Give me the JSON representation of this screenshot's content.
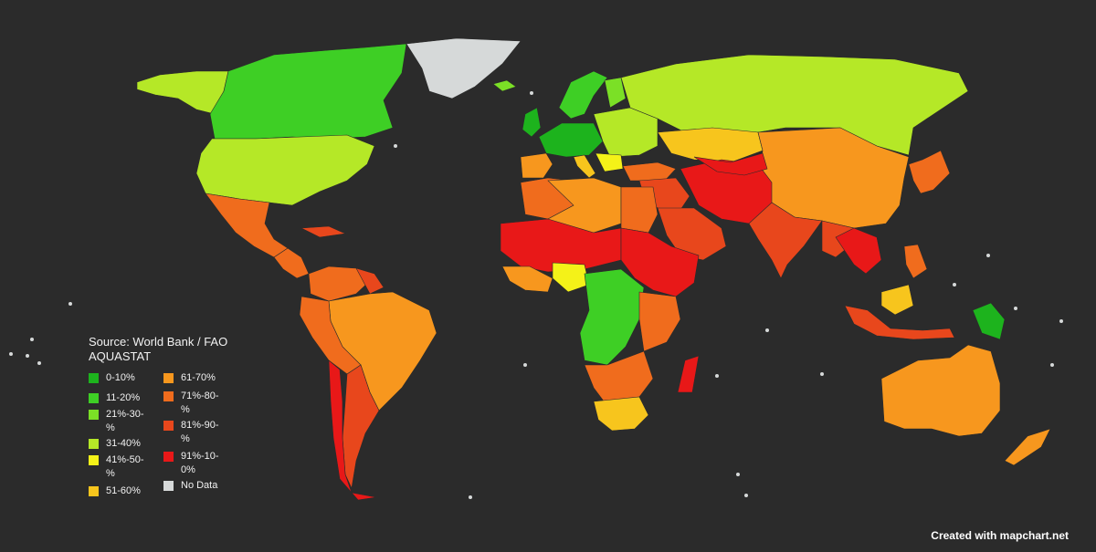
{
  "source_text": "Source: World Bank / FAO AQUASTAT",
  "credit_text": "Created with mapchart.net",
  "background_color": "#2b2b2b",
  "legend": [
    {
      "label": "0-10%",
      "color": "#1db31d"
    },
    {
      "label": "11-20%",
      "color": "#3ecf25"
    },
    {
      "label": "21%-30-%",
      "color": "#7be026"
    },
    {
      "label": "31-40%",
      "color": "#b5e827"
    },
    {
      "label": "41%-50-%",
      "color": "#f4f218"
    },
    {
      "label": "51-60%",
      "color": "#f7c51d"
    },
    {
      "label": "61-70%",
      "color": "#f7971e"
    },
    {
      "label": "71%-80-%",
      "color": "#f06c1d"
    },
    {
      "label": "81%-90-%",
      "color": "#e8471c"
    },
    {
      "label": "91%-10-0%",
      "color": "#e81818"
    },
    {
      "label": "No Data",
      "color": "#d6d9d9"
    }
  ],
  "regions": [
    {
      "name": "canada",
      "bin": 1
    },
    {
      "name": "alaska",
      "bin": 3
    },
    {
      "name": "greenland",
      "bin": 10
    },
    {
      "name": "usa",
      "bin": 3
    },
    {
      "name": "mexico",
      "bin": 7
    },
    {
      "name": "central-america",
      "bin": 7
    },
    {
      "name": "cuba",
      "bin": 8
    },
    {
      "name": "colombia-venezuela",
      "bin": 7
    },
    {
      "name": "guianas",
      "bin": 8
    },
    {
      "name": "brazil",
      "bin": 6
    },
    {
      "name": "peru-bolivia",
      "bin": 7
    },
    {
      "name": "chile",
      "bin": 9
    },
    {
      "name": "argentina",
      "bin": 8
    },
    {
      "name": "iceland",
      "bin": 2
    },
    {
      "name": "uk-ireland",
      "bin": 0
    },
    {
      "name": "scandinavia",
      "bin": 1
    },
    {
      "name": "finland",
      "bin": 2
    },
    {
      "name": "western-europe",
      "bin": 0
    },
    {
      "name": "eastern-europe",
      "bin": 3
    },
    {
      "name": "iberia",
      "bin": 6
    },
    {
      "name": "italy",
      "bin": 5
    },
    {
      "name": "balkans",
      "bin": 4
    },
    {
      "name": "russia",
      "bin": 3
    },
    {
      "name": "kazakhstan",
      "bin": 5
    },
    {
      "name": "mongolia-china",
      "bin": 6
    },
    {
      "name": "turkey",
      "bin": 7
    },
    {
      "name": "middle-east",
      "bin": 8
    },
    {
      "name": "arabian-peninsula",
      "bin": 8
    },
    {
      "name": "iran-pakistan",
      "bin": 9
    },
    {
      "name": "central-asia",
      "bin": 9
    },
    {
      "name": "india",
      "bin": 8
    },
    {
      "name": "southeast-asia",
      "bin": 8
    },
    {
      "name": "vietnam-thailand",
      "bin": 9
    },
    {
      "name": "korea-japan",
      "bin": 7
    },
    {
      "name": "maghreb",
      "bin": 7
    },
    {
      "name": "algeria-libya",
      "bin": 6
    },
    {
      "name": "egypt",
      "bin": 7
    },
    {
      "name": "sahel",
      "bin": 9
    },
    {
      "name": "sudan-ethiopia",
      "bin": 9
    },
    {
      "name": "west-africa-coast",
      "bin": 6
    },
    {
      "name": "nigeria",
      "bin": 4
    },
    {
      "name": "central-africa",
      "bin": 1
    },
    {
      "name": "east-africa",
      "bin": 7
    },
    {
      "name": "angola-zambia",
      "bin": 7
    },
    {
      "name": "southern-africa",
      "bin": 5
    },
    {
      "name": "madagascar",
      "bin": 9
    },
    {
      "name": "indonesia",
      "bin": 8
    },
    {
      "name": "borneo-malaysia",
      "bin": 5
    },
    {
      "name": "papua-new-guinea",
      "bin": 0
    },
    {
      "name": "philippines",
      "bin": 7
    },
    {
      "name": "australia",
      "bin": 6
    },
    {
      "name": "new-zealand",
      "bin": 6
    }
  ]
}
